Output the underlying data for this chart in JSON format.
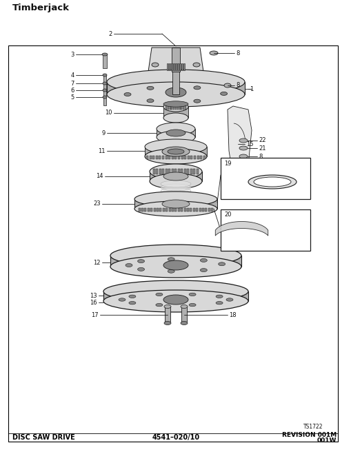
{
  "title": "Timberjack",
  "bg_color": "#ffffff",
  "footer_left": "DISC SAW DRIVE",
  "footer_center": "4541–020/10",
  "footer_right_line1": "REVISION 001M",
  "footer_right_line2": "001W",
  "ts_label": "TS1722",
  "border": [
    12,
    18,
    490,
    575
  ],
  "gray_light": "#d8d8d8",
  "gray_mid": "#b0b0b0",
  "gray_dark": "#888888",
  "line_col": "#1a1a1a",
  "label_col": "#111111"
}
